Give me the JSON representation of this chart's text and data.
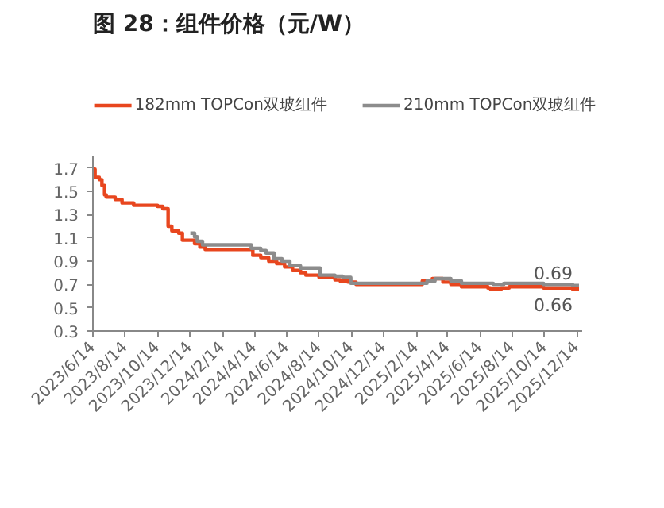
{
  "chart_data": {
    "type": "step",
    "title": "图 28：组件价格（元/W）",
    "series": [
      {
        "name": "182mm TOPCon双玻组件",
        "color": "#e8461e",
        "x": [
          "2023-06-14",
          "2023-06-18",
          "2023-06-26",
          "2023-07-01",
          "2023-07-06",
          "2023-07-09",
          "2023-07-26",
          "2023-08-08",
          "2023-08-30",
          "2023-10-14",
          "2023-10-24",
          "2023-11-03",
          "2023-11-10",
          "2023-11-23",
          "2023-11-30",
          "2023-12-23",
          "2024-01-02",
          "2024-01-12",
          "2024-04-11",
          "2024-04-26",
          "2024-05-11",
          "2024-05-26",
          "2024-06-10",
          "2024-06-25",
          "2024-07-10",
          "2024-07-20",
          "2024-08-14",
          "2024-09-13",
          "2024-09-23",
          "2024-10-08",
          "2024-10-23",
          "2025-02-25",
          "2025-03-16",
          "2025-04-05",
          "2025-04-20",
          "2025-05-10",
          "2025-06-29",
          "2025-07-04",
          "2025-07-24",
          "2025-08-08",
          "2025-10-12",
          "2025-12-06",
          "2025-12-18"
        ],
        "values": [
          1.69,
          1.62,
          1.6,
          1.55,
          1.47,
          1.45,
          1.43,
          1.4,
          1.38,
          1.37,
          1.35,
          1.2,
          1.16,
          1.14,
          1.08,
          1.05,
          1.02,
          1.0,
          0.95,
          0.93,
          0.9,
          0.88,
          0.85,
          0.82,
          0.8,
          0.78,
          0.76,
          0.74,
          0.73,
          0.72,
          0.7,
          0.73,
          0.75,
          0.72,
          0.7,
          0.68,
          0.67,
          0.66,
          0.67,
          0.68,
          0.67,
          0.66,
          0.66
        ]
      },
      {
        "name": "210mm TOPCon双玻组件",
        "color": "#8c8c8c",
        "x": [
          "2023-12-15",
          "2023-12-23",
          "2023-12-28",
          "2024-01-07",
          "2024-04-08",
          "2024-04-26",
          "2024-05-06",
          "2024-05-21",
          "2024-06-05",
          "2024-06-20",
          "2024-07-10",
          "2024-08-16",
          "2024-09-13",
          "2024-09-28",
          "2024-10-13",
          "2025-03-06",
          "2025-03-21",
          "2025-04-20",
          "2025-05-10",
          "2025-07-09",
          "2025-07-29",
          "2025-10-12",
          "2025-12-06",
          "2025-12-18"
        ],
        "values": [
          1.14,
          1.11,
          1.07,
          1.04,
          1.01,
          0.99,
          0.97,
          0.92,
          0.9,
          0.86,
          0.84,
          0.78,
          0.77,
          0.76,
          0.71,
          0.73,
          0.75,
          0.73,
          0.71,
          0.7,
          0.71,
          0.7,
          0.69,
          0.69
        ]
      }
    ],
    "annotations": [
      {
        "text": "0.69",
        "x": "2025-12-06",
        "y": 0.69
      },
      {
        "text": "0.66",
        "x": "2025-12-06",
        "y": 0.66
      }
    ],
    "xlim": [
      "2023-06-14",
      "2025-12-24"
    ],
    "xticks": [
      {
        "value": "2023-06-14",
        "label": "2023/6/14"
      },
      {
        "value": "2023-08-14",
        "label": "2023/8/14"
      },
      {
        "value": "2023-10-14",
        "label": "2023/10/14"
      },
      {
        "value": "2023-12-14",
        "label": "2023/12/14"
      },
      {
        "value": "2024-02-14",
        "label": "2024/2/14"
      },
      {
        "value": "2024-04-14",
        "label": "2024/4/14"
      },
      {
        "value": "2024-06-14",
        "label": "2024/6/14"
      },
      {
        "value": "2024-08-14",
        "label": "2024/8/14"
      },
      {
        "value": "2024-10-14",
        "label": "2024/10/14"
      },
      {
        "value": "2024-12-14",
        "label": "2024/12/14"
      },
      {
        "value": "2025-02-14",
        "label": "2025/2/14"
      },
      {
        "value": "2025-04-14",
        "label": "2025/4/14"
      },
      {
        "value": "2025-06-14",
        "label": "2025/6/14"
      },
      {
        "value": "2025-08-14",
        "label": "2025/8/14"
      },
      {
        "value": "2025-10-14",
        "label": "2025/10/14"
      },
      {
        "value": "2025-12-14",
        "label": "2025/12/14"
      }
    ],
    "ylim": [
      0.3,
      1.8
    ],
    "yticks": [
      0.3,
      0.5,
      0.7,
      0.9,
      1.1,
      1.3,
      1.5,
      1.7
    ],
    "legend": "top"
  }
}
